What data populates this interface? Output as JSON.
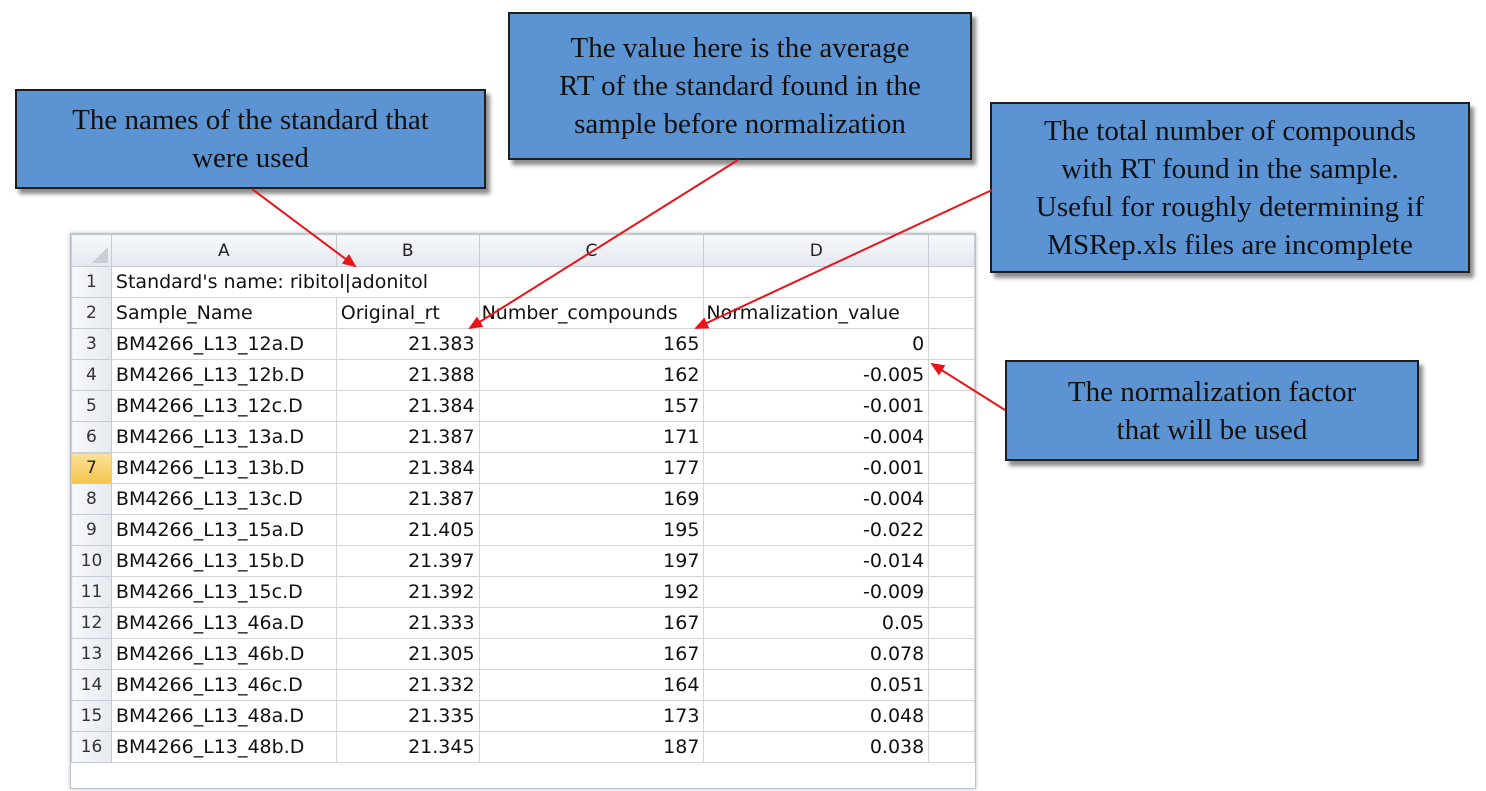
{
  "callouts": {
    "standard_names": [
      "The names of the standard that",
      "were used"
    ],
    "average_rt": [
      "The value here is the average",
      "RT of the standard found in the",
      "sample before normalization"
    ],
    "total_compounds": [
      "The total number of compounds",
      "with RT found in the sample.",
      "Useful for roughly determining if",
      "MSRep.xls files are incomplete"
    ],
    "normalization_factor": [
      "The normalization factor",
      "that will be used"
    ]
  },
  "sheet": {
    "columns": [
      "A",
      "B",
      "C",
      "D"
    ],
    "row1": {
      "num": "1",
      "text": "Standard's name: ribitol|adonitol"
    },
    "headers": {
      "num": "2",
      "a": "Sample_Name",
      "b": "Original_rt",
      "c": "Number_compounds",
      "d": "Normalization_value"
    },
    "rows": [
      {
        "num": "3",
        "name": "BM4266_L13_12a.D",
        "rt": "21.383",
        "n": "165",
        "norm": "0"
      },
      {
        "num": "4",
        "name": "BM4266_L13_12b.D",
        "rt": "21.388",
        "n": "162",
        "norm": "-0.005"
      },
      {
        "num": "5",
        "name": "BM4266_L13_12c.D",
        "rt": "21.384",
        "n": "157",
        "norm": "-0.001"
      },
      {
        "num": "6",
        "name": "BM4266_L13_13a.D",
        "rt": "21.387",
        "n": "171",
        "norm": "-0.004"
      },
      {
        "num": "7",
        "name": "BM4266_L13_13b.D",
        "rt": "21.384",
        "n": "177",
        "norm": "-0.001"
      },
      {
        "num": "8",
        "name": "BM4266_L13_13c.D",
        "rt": "21.387",
        "n": "169",
        "norm": "-0.004"
      },
      {
        "num": "9",
        "name": "BM4266_L13_15a.D",
        "rt": "21.405",
        "n": "195",
        "norm": "-0.022"
      },
      {
        "num": "10",
        "name": "BM4266_L13_15b.D",
        "rt": "21.397",
        "n": "197",
        "norm": "-0.014"
      },
      {
        "num": "11",
        "name": "BM4266_L13_15c.D",
        "rt": "21.392",
        "n": "192",
        "norm": "-0.009"
      },
      {
        "num": "12",
        "name": "BM4266_L13_46a.D",
        "rt": "21.333",
        "n": "167",
        "norm": "0.05"
      },
      {
        "num": "13",
        "name": "BM4266_L13_46b.D",
        "rt": "21.305",
        "n": "167",
        "norm": "0.078"
      },
      {
        "num": "14",
        "name": "BM4266_L13_46c.D",
        "rt": "21.332",
        "n": "164",
        "norm": "0.051"
      },
      {
        "num": "15",
        "name": "BM4266_L13_48a.D",
        "rt": "21.335",
        "n": "173",
        "norm": "0.048"
      },
      {
        "num": "16",
        "name": "BM4266_L13_48b.D",
        "rt": "21.345",
        "n": "187",
        "norm": "0.038"
      }
    ],
    "active_row": "7"
  },
  "colors": {
    "callout_fill": "#5b93d3",
    "arrow": "#e8141a",
    "active_row_header": "#f3c44a"
  }
}
